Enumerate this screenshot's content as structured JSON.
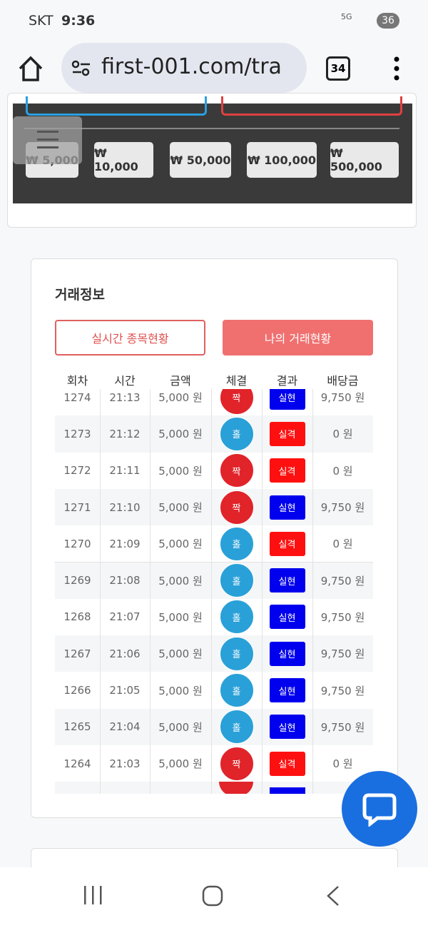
{
  "status": {
    "carrier": "SKT",
    "time": "9:36",
    "network": "5G",
    "battery": "36"
  },
  "browser": {
    "url": "first-001.com/tra",
    "tabs": "34"
  },
  "chips": [
    "₩ 5,000",
    "₩ 10,000",
    "₩ 50,000",
    "₩ 100,000",
    "₩ 500,000"
  ],
  "section": {
    "title": "거래정보",
    "buttons": [
      "실시간 종목현황",
      "나의 거래현황"
    ]
  },
  "table": {
    "headers": [
      "회차",
      "시간",
      "금액",
      "체결",
      "결과",
      "배당금"
    ],
    "rows": [
      [
        "1274",
        "21:13",
        "5,000 원",
        "짝",
        "실현",
        "9,750 원"
      ],
      [
        "1273",
        "21:12",
        "5,000 원",
        "홀",
        "실격",
        "0 원"
      ],
      [
        "1272",
        "21:11",
        "5,000 원",
        "짝",
        "실격",
        "0 원"
      ],
      [
        "1271",
        "21:10",
        "5,000 원",
        "짝",
        "실현",
        "9,750 원"
      ],
      [
        "1270",
        "21:09",
        "5,000 원",
        "홀",
        "실격",
        "0 원"
      ],
      [
        "1269",
        "21:08",
        "5,000 원",
        "홀",
        "실현",
        "9,750 원"
      ],
      [
        "1268",
        "21:07",
        "5,000 원",
        "홀",
        "실현",
        "9,750 원"
      ],
      [
        "1267",
        "21:06",
        "5,000 원",
        "홀",
        "실현",
        "9,750 원"
      ],
      [
        "1266",
        "21:05",
        "5,000 원",
        "홀",
        "실현",
        "9,750 원"
      ],
      [
        "1265",
        "21:04",
        "5,000 원",
        "홀",
        "실현",
        "9,750 원"
      ],
      [
        "1264",
        "21:03",
        "5,000 원",
        "짝",
        "실격",
        "0 원"
      ]
    ]
  }
}
